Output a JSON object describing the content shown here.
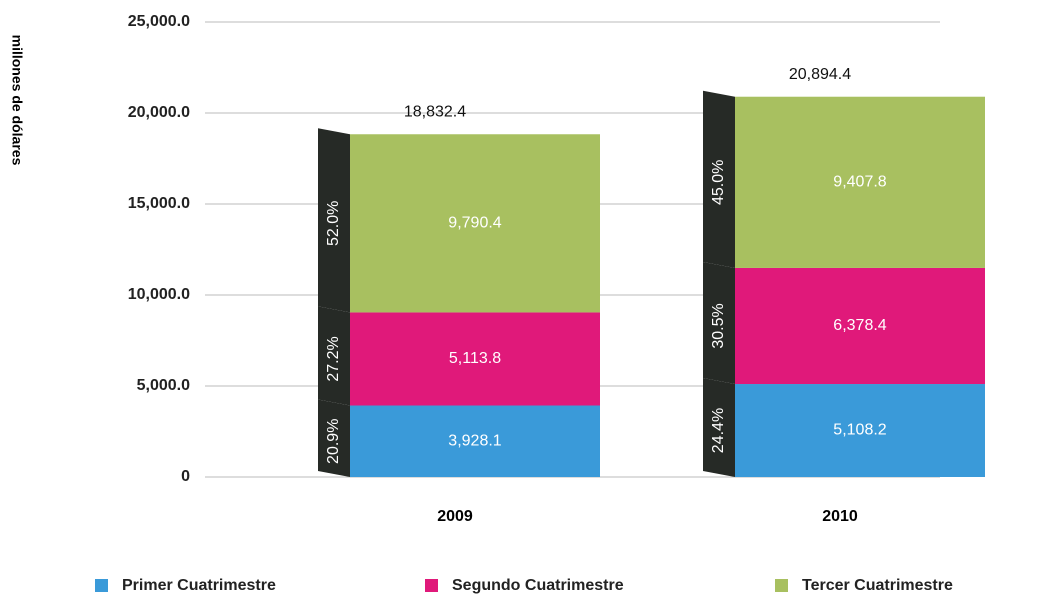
{
  "chart_data": {
    "type": "stacked_bar",
    "y_axis_label": "millones de dólares",
    "categories": [
      "2009",
      "2010"
    ],
    "series": [
      {
        "name": "Primer Cuatrimestre",
        "color": "#3a9ad9",
        "values": [
          3928.1,
          5108.2
        ],
        "value_labels": [
          "3,928.1",
          "5,108.2"
        ],
        "percent_values": [
          20.9,
          24.4
        ],
        "percent_labels": [
          "20.9%",
          "24.4%"
        ]
      },
      {
        "name": "Segundo Cuatrimestre",
        "color": "#e0197a",
        "values": [
          5113.8,
          6378.4
        ],
        "value_labels": [
          "5,113.8",
          "6,378.4"
        ],
        "percent_values": [
          27.2,
          30.5
        ],
        "percent_labels": [
          "27.2%",
          "30.5%"
        ]
      },
      {
        "name": "Tercer Cuatrimestre",
        "color": "#a8c060",
        "values": [
          9790.4,
          9407.8
        ],
        "value_labels": [
          "9,790.4",
          "9,407.8"
        ],
        "percent_values": [
          52.0,
          45.0
        ],
        "percent_labels": [
          "52.0%",
          "45.0%"
        ]
      }
    ],
    "totals": [
      18832.4,
      20894.4
    ],
    "total_labels": [
      "18,832.4",
      "20,894.4"
    ],
    "ylim": [
      0,
      25000
    ],
    "yticks": [
      0,
      {
        "value": 5000,
        "label": "5,000.0"
      },
      {
        "value": 10000,
        "label": "10,000.0"
      },
      {
        "value": 15000,
        "label": "15,000.0"
      },
      {
        "value": 20000,
        "label": "20,000.0"
      },
      {
        "value": 25000,
        "label": "25,000.0"
      }
    ],
    "grid": true,
    "legend": "bottom"
  }
}
